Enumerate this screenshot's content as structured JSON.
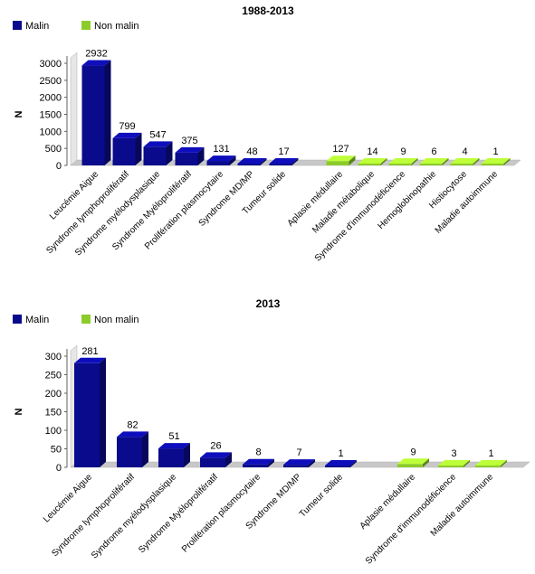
{
  "colors": {
    "malin": "#0a0a8c",
    "non_malin": "#8ccc2a",
    "floor": "#c8c8c8",
    "axis": "#606060"
  },
  "chart_data": [
    {
      "type": "bar",
      "title": "1988-2013",
      "ylabel": "N",
      "ylim": [
        0,
        3000
      ],
      "yticks": [
        0,
        500,
        1000,
        1500,
        2000,
        2500,
        3000
      ],
      "legend": [
        {
          "name": "Malin",
          "color": "#0a0a8c"
        },
        {
          "name": "Non malin",
          "color": "#8ccc2a"
        }
      ],
      "series": [
        {
          "name": "Malin",
          "categories": [
            "Leucémie Aigue",
            "Syndrome lymphoprolifératif",
            "Syndrome myélodysplasique",
            "Syndrome Myéloprolifératif",
            "Prolifération plasmocytaire",
            "Syndrome MD/MP",
            "Tumeur solide"
          ],
          "values": [
            2932,
            799,
            547,
            375,
            131,
            48,
            17
          ]
        },
        {
          "name": "Non malin",
          "categories": [
            "Aplasie médullaire",
            "Maladie métabolique",
            "Syndrome d'immunodéficience",
            "Hemoglobinopathie",
            "Histiocytose",
            "Maladie autoimmune"
          ],
          "values": [
            127,
            14,
            9,
            6,
            4,
            1
          ]
        }
      ]
    },
    {
      "type": "bar",
      "title": "2013",
      "ylabel": "N",
      "ylim": [
        0,
        300
      ],
      "yticks": [
        0,
        50,
        100,
        150,
        200,
        250,
        300
      ],
      "legend": [
        {
          "name": "Malin",
          "color": "#0a0a8c"
        },
        {
          "name": "Non malin",
          "color": "#8ccc2a"
        }
      ],
      "series": [
        {
          "name": "Malin",
          "categories": [
            "Leucémie Aigue",
            "Syndrome lymphoprolifératif",
            "Syndrome myélodysplasique",
            "Syndrome Myéloprolifératif",
            "Prolifération plasmocytaire",
            "Syndrome MD/MP",
            "Tumeur solide"
          ],
          "values": [
            281,
            82,
            51,
            26,
            8,
            7,
            1
          ]
        },
        {
          "name": "Non malin",
          "categories": [
            "Aplasie médullaire",
            "Syndrome d'immunodéficience",
            "Maladie autoimmune"
          ],
          "values": [
            9,
            3,
            1
          ]
        }
      ]
    }
  ]
}
